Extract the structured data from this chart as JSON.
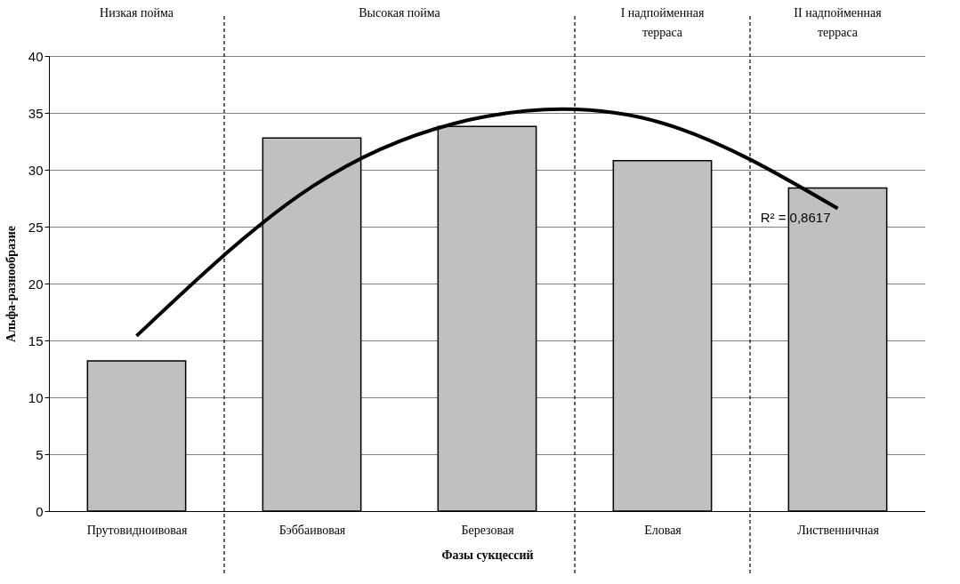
{
  "chart_data": {
    "type": "bar",
    "xlabel": "Фазы сукцессий",
    "ylabel": "Альфа-разнообразие",
    "categories": [
      "Прутовидноивовая",
      "Бэббаивовая",
      "Березовая",
      "Еловая",
      "Лиственничная"
    ],
    "series": [
      {
        "color": "#c0c0c0",
        "values": [
          13.2,
          32.8,
          33.8,
          30.8,
          28.4
        ]
      },
      {
        "type": "line",
        "color": "#000000",
        "values": [
          15.4,
          28.5,
          34.7,
          34.1,
          26.6
        ]
      }
    ],
    "ylim": [
      0,
      40
    ],
    "yticks": [
      0,
      5,
      10,
      15,
      20,
      25,
      30,
      35,
      40
    ],
    "grid": "y",
    "annotations": [
      "R² = 0,8617",
      "Низкая пойма",
      "Высокая пойма",
      "I надпойменная\nтерраса",
      "II надпойменная\nтерраса"
    ]
  }
}
